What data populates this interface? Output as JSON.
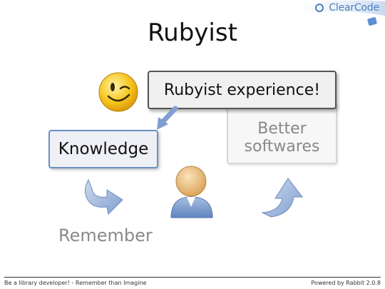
{
  "header": {
    "logo_text": "ClearCode"
  },
  "slide": {
    "title": "Rubyist",
    "boxes": {
      "knowledge": "Knowledge",
      "experience": "Rubyist experience!",
      "better_line1": "Better",
      "better_line2": "softwares"
    },
    "remember_label": "Remember"
  },
  "icons": {
    "smiley": "winking-smiley-icon",
    "person": "person-icon",
    "remember_arrow": "curved-arrow-icon",
    "up_arrow": "curved-up-arrow-icon"
  },
  "colors": {
    "accent_blue": "#6b8fc4",
    "smiley_yellow": "#f6c51c",
    "person_head": "#e8b46a",
    "person_body": "#7f9fd0"
  },
  "footer": {
    "left": "Be a library developer! - Remember than Imagine",
    "right": "Powered by Rabbit 2.0.8"
  }
}
